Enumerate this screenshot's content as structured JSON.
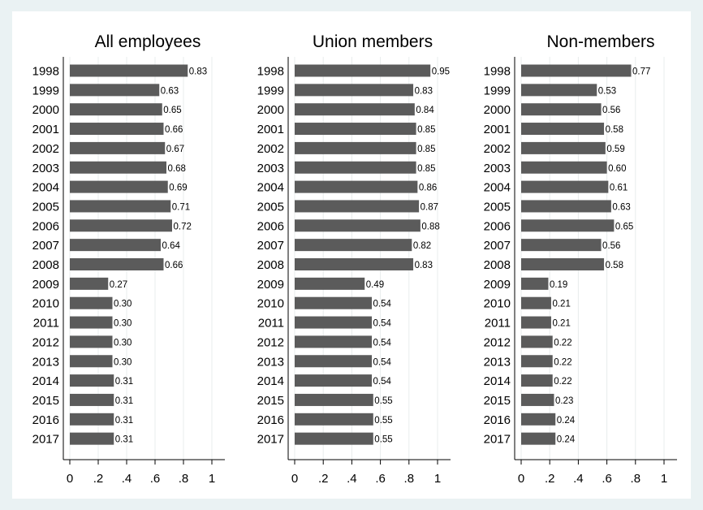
{
  "colors": {
    "bar": "#5b5b5b",
    "grid": "#e8ecec",
    "axis": "#000000",
    "text": "#000000"
  },
  "chart_data": [
    {
      "type": "bar",
      "orientation": "horizontal",
      "title": "All employees",
      "categories": [
        "1998",
        "1999",
        "2000",
        "2001",
        "2002",
        "2003",
        "2004",
        "2005",
        "2006",
        "2007",
        "2008",
        "2009",
        "2010",
        "2011",
        "2012",
        "2013",
        "2014",
        "2015",
        "2016",
        "2017"
      ],
      "values": [
        0.83,
        0.63,
        0.65,
        0.66,
        0.67,
        0.68,
        0.69,
        0.71,
        0.72,
        0.64,
        0.66,
        0.27,
        0.3,
        0.3,
        0.3,
        0.3,
        0.31,
        0.31,
        0.31,
        0.31
      ],
      "value_labels": [
        "0.83",
        "0.63",
        "0.65",
        "0.66",
        "0.67",
        "0.68",
        "0.69",
        "0.71",
        "0.72",
        "0.64",
        "0.66",
        "0.27",
        "0.30",
        "0.30",
        "0.30",
        "0.30",
        "0.31",
        "0.31",
        "0.31",
        "0.31"
      ],
      "xlim": [
        0,
        1
      ],
      "xticks": [
        0,
        0.2,
        0.4,
        0.6,
        0.8,
        1
      ],
      "xtick_labels": [
        "0",
        ".2",
        ".4",
        ".6",
        ".8",
        "1"
      ],
      "grid": true
    },
    {
      "type": "bar",
      "orientation": "horizontal",
      "title": "Union members",
      "categories": [
        "1998",
        "1999",
        "2000",
        "2001",
        "2002",
        "2003",
        "2004",
        "2005",
        "2006",
        "2007",
        "2008",
        "2009",
        "2010",
        "2011",
        "2012",
        "2013",
        "2014",
        "2015",
        "2016",
        "2017"
      ],
      "values": [
        0.95,
        0.83,
        0.84,
        0.85,
        0.85,
        0.85,
        0.86,
        0.87,
        0.88,
        0.82,
        0.83,
        0.49,
        0.54,
        0.54,
        0.54,
        0.54,
        0.54,
        0.55,
        0.55,
        0.55
      ],
      "value_labels": [
        "0.95",
        "0.83",
        "0.84",
        "0.85",
        "0.85",
        "0.85",
        "0.86",
        "0.87",
        "0.88",
        "0.82",
        "0.83",
        "0.49",
        "0.54",
        "0.54",
        "0.54",
        "0.54",
        "0.54",
        "0.55",
        "0.55",
        "0.55"
      ],
      "xlim": [
        0,
        1
      ],
      "xticks": [
        0,
        0.2,
        0.4,
        0.6,
        0.8,
        1
      ],
      "xtick_labels": [
        "0",
        ".2",
        ".4",
        ".6",
        ".8",
        "1"
      ],
      "grid": true
    },
    {
      "type": "bar",
      "orientation": "horizontal",
      "title": "Non-members",
      "categories": [
        "1998",
        "1999",
        "2000",
        "2001",
        "2002",
        "2003",
        "2004",
        "2005",
        "2006",
        "2007",
        "2008",
        "2009",
        "2010",
        "2011",
        "2012",
        "2013",
        "2014",
        "2015",
        "2016",
        "2017"
      ],
      "values": [
        0.77,
        0.53,
        0.56,
        0.58,
        0.59,
        0.6,
        0.61,
        0.63,
        0.65,
        0.56,
        0.58,
        0.19,
        0.21,
        0.21,
        0.22,
        0.22,
        0.22,
        0.23,
        0.24,
        0.24
      ],
      "value_labels": [
        "0.77",
        "0.53",
        "0.56",
        "0.58",
        "0.59",
        "0.60",
        "0.61",
        "0.63",
        "0.65",
        "0.56",
        "0.58",
        "0.19",
        "0.21",
        "0.21",
        "0.22",
        "0.22",
        "0.22",
        "0.23",
        "0.24",
        "0.24"
      ],
      "xlim": [
        0,
        1
      ],
      "xticks": [
        0,
        0.2,
        0.4,
        0.6,
        0.8,
        1
      ],
      "xtick_labels": [
        "0",
        ".2",
        ".4",
        ".6",
        ".8",
        "1"
      ],
      "grid": true
    }
  ]
}
